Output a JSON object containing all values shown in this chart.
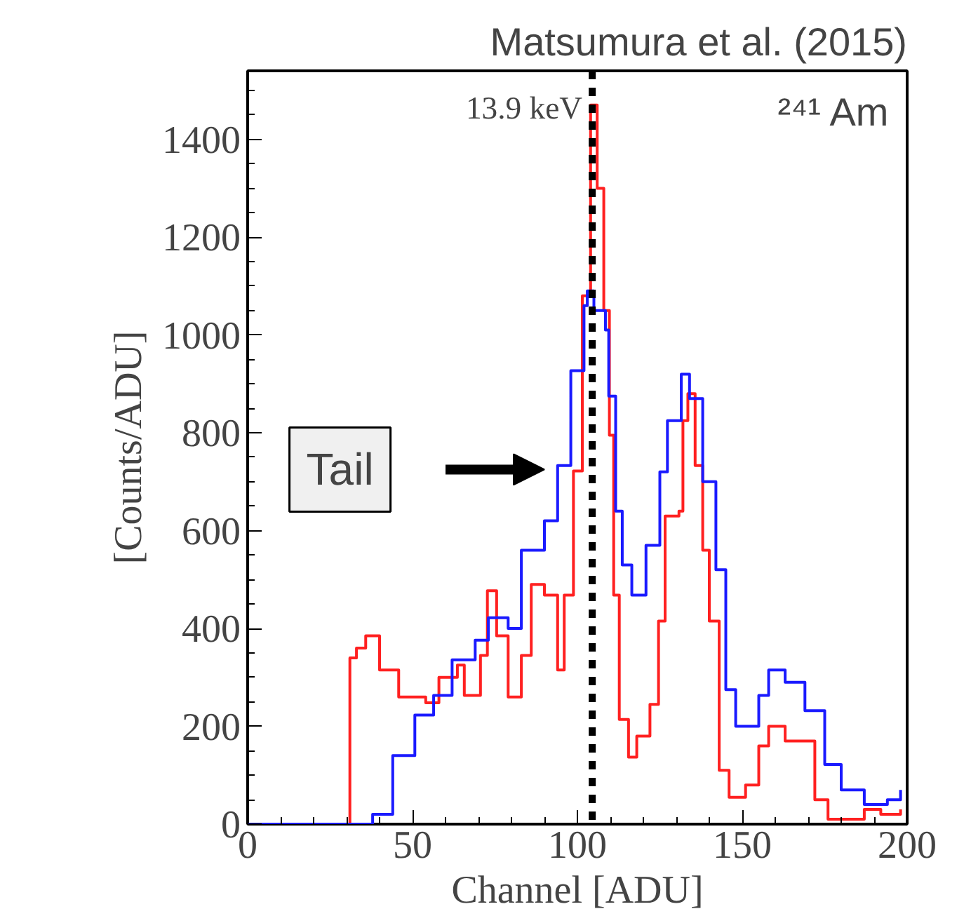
{
  "chart_data": {
    "type": "step",
    "title": "Matsumura et al. (2015)",
    "xlabel": "Channel [ADU]",
    "ylabel": "[Counts/ADU]",
    "xlim": [
      0,
      200
    ],
    "ylim": [
      0,
      1540
    ],
    "xticks": [
      0,
      50,
      100,
      150,
      200
    ],
    "yticks": [
      0,
      200,
      400,
      600,
      800,
      1000,
      1200,
      1400
    ],
    "grid": false,
    "marker": "none",
    "line_style": "solid",
    "series": [
      {
        "color": "#ff2020",
        "x": [
          0,
          31,
          33,
          35.8,
          40,
          45.8,
          54,
          58,
          63.6,
          65.7,
          70.6,
          72.7,
          75.5,
          79,
          83,
          86,
          90,
          94,
          96,
          98.8,
          101.5,
          104,
          106,
          108,
          109.7,
          111,
          112.7,
          115.5,
          118,
          122,
          124.6,
          126.6,
          130.8,
          132,
          133.5,
          135.7,
          138,
          140,
          143,
          146,
          151,
          155,
          158,
          163,
          169,
          172,
          176,
          187,
          192,
          198
        ],
        "values": [
          0,
          340,
          360,
          385,
          315,
          260,
          248,
          300,
          325,
          263,
          345,
          477,
          385,
          260,
          345,
          490,
          468,
          315,
          468,
          722,
          1080,
          1470,
          1300,
          1050,
          795,
          468,
          214,
          137,
          180,
          245,
          415,
          630,
          640,
          825,
          880,
          733,
          560,
          415,
          110,
          55,
          80,
          160,
          200,
          170,
          170,
          50,
          10,
          30,
          20,
          30
        ]
      },
      {
        "color": "#1a1aff",
        "x": [
          0,
          37.9,
          44,
          50.7,
          56.4,
          62,
          69,
          73,
          79,
          83,
          90,
          94,
          98,
          102,
          103,
          105,
          108.5,
          109.5,
          111.6,
          113.6,
          116.5,
          120.8,
          125,
          127.3,
          131.5,
          134,
          138,
          142,
          145,
          148,
          155,
          158,
          163,
          169,
          175,
          180,
          187,
          194,
          198
        ],
        "values": [
          0,
          20,
          140,
          223,
          263,
          336,
          376,
          422,
          400,
          560,
          620,
          733,
          927,
          1060,
          1090,
          1050,
          1010,
          875,
          640,
          530,
          468,
          570,
          720,
          825,
          920,
          870,
          700,
          520,
          275,
          200,
          263,
          315,
          290,
          232,
          122,
          70,
          40,
          50,
          70
        ]
      }
    ],
    "ref_lines": [
      {
        "axis": "x",
        "value": 104.5,
        "label": "13.9 keV",
        "color": "#000000",
        "line_style": "dashed"
      }
    ],
    "annotations": [
      "Tail",
      "²⁴¹ Am"
    ]
  }
}
